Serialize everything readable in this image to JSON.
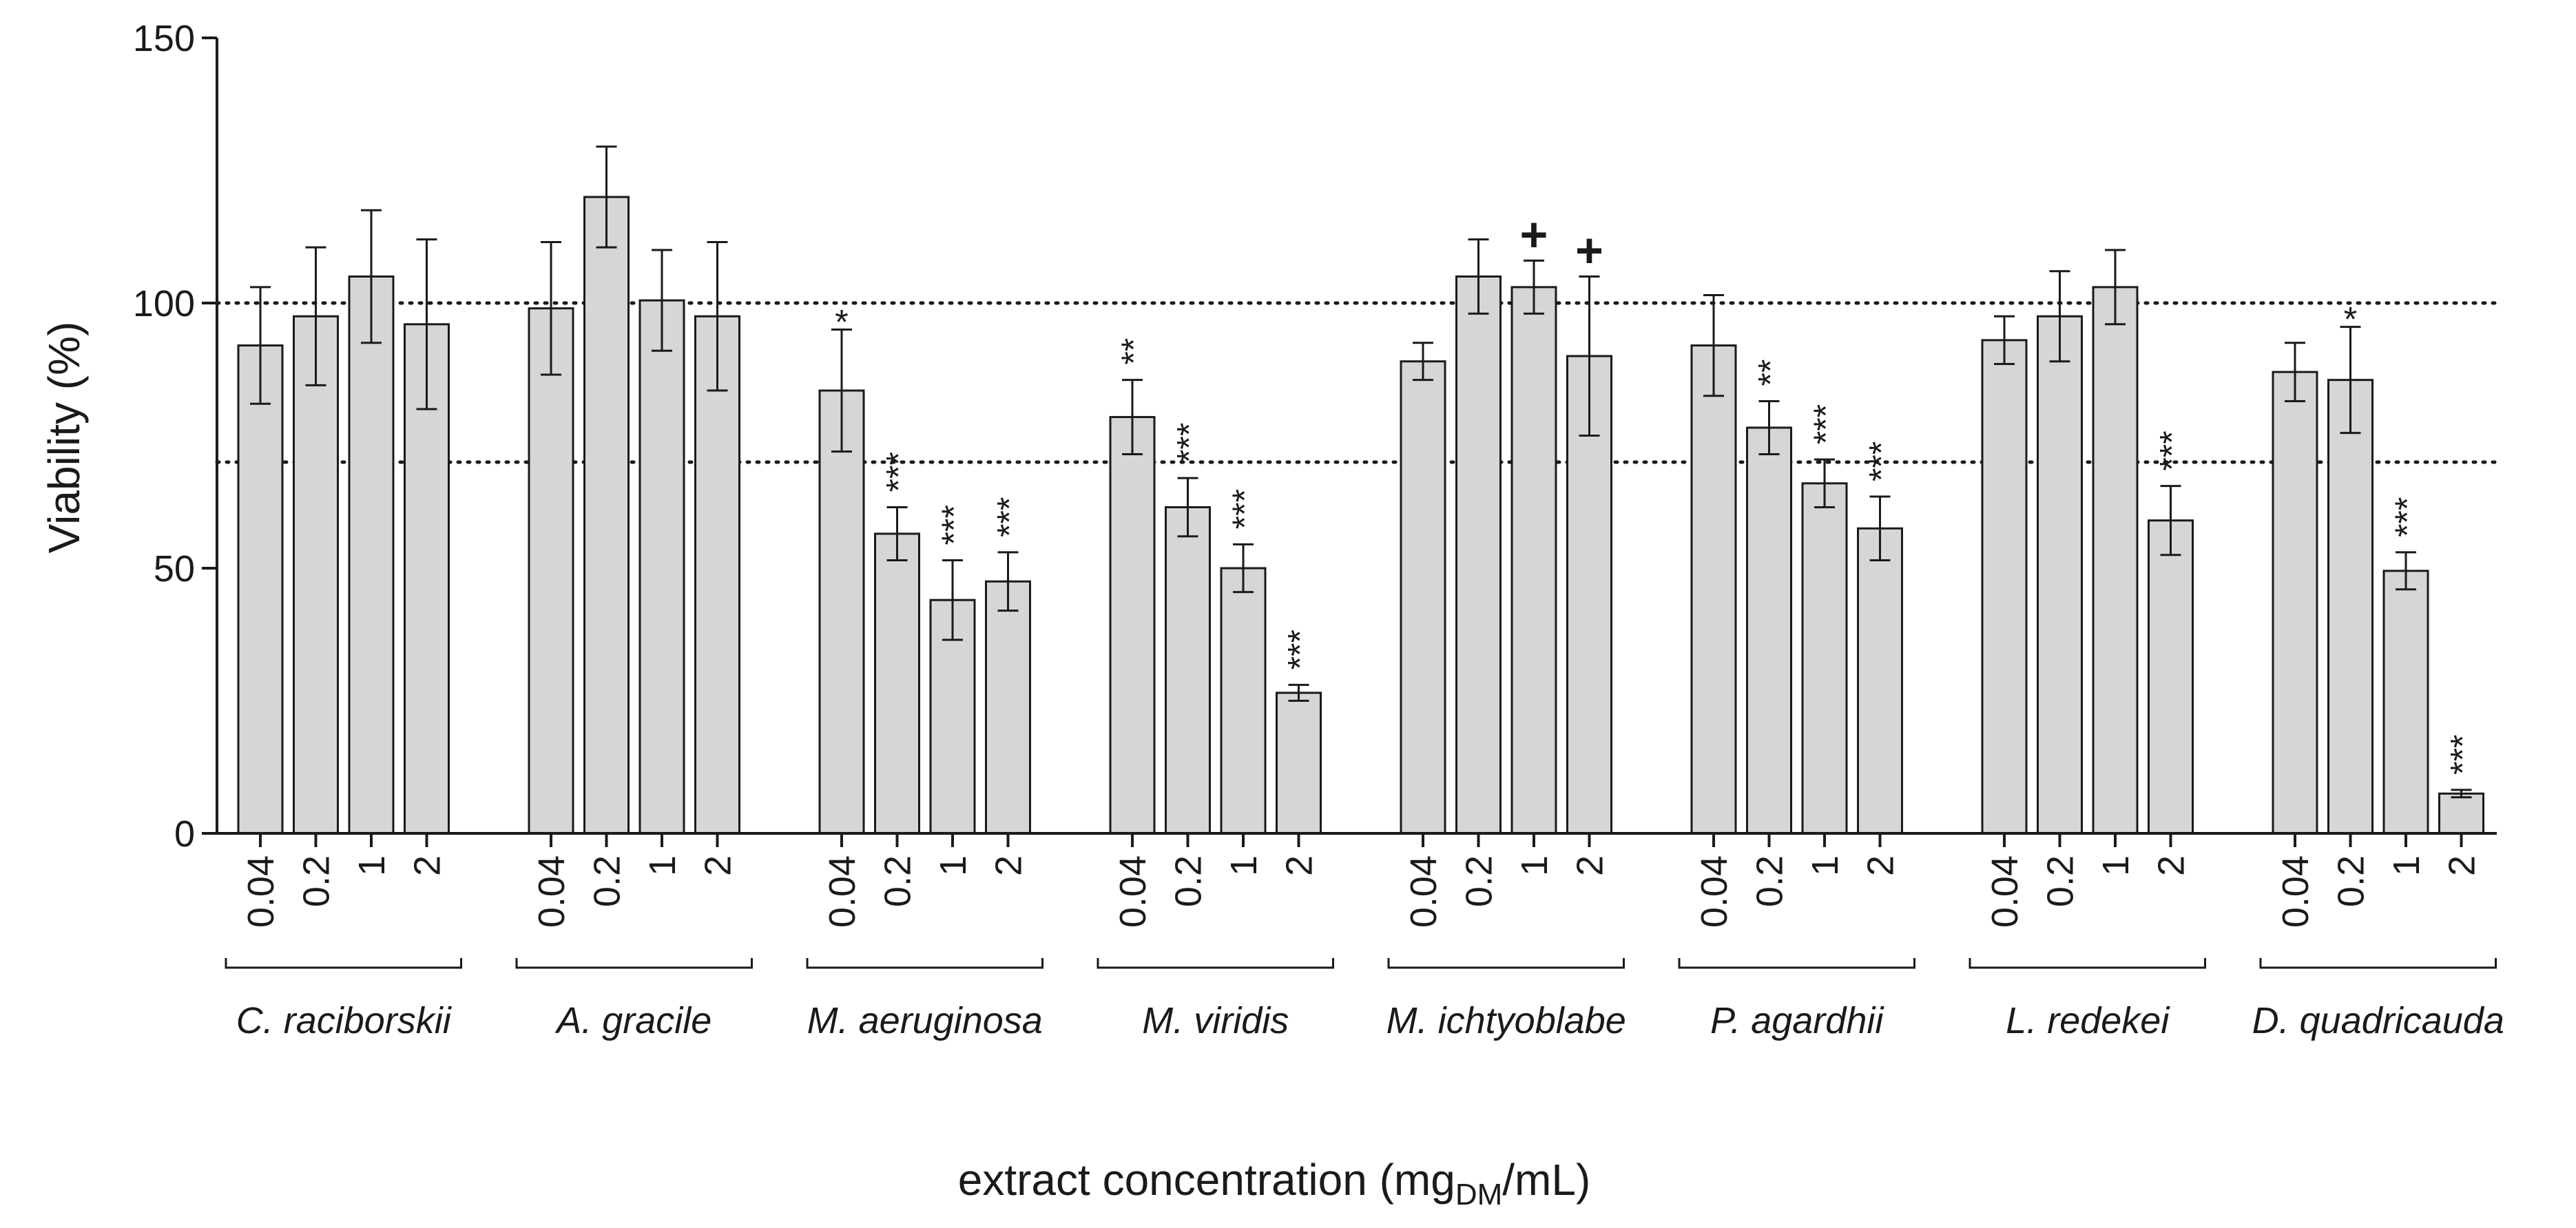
{
  "chart_data": {
    "type": "bar",
    "ylabel": "Viability (%)",
    "xlabel_main": "extract concentration (mg",
    "xlabel_sub": "DM",
    "xlabel_tail": "/mL)",
    "ylim": [
      0,
      150
    ],
    "yticks": [
      "0",
      "50",
      "100",
      "150"
    ],
    "reference_lines": [
      100,
      70
    ],
    "colors": {
      "bar_fill": "#d6d6d6",
      "bar_stroke": "#1a1a1a",
      "axis": "#1a1a1a"
    },
    "concentrations": [
      "0.04",
      "0.2",
      "1",
      "2"
    ],
    "groups": [
      {
        "name": "C. raciborskii",
        "values": [
          92,
          97.5,
          105,
          96
        ],
        "errors": [
          11,
          13,
          12.5,
          16
        ],
        "marks": [
          "",
          "",
          "",
          ""
        ]
      },
      {
        "name": "A. gracile",
        "values": [
          99,
          120,
          100.5,
          97.5
        ],
        "errors": [
          12.5,
          9.5,
          9.5,
          14
        ],
        "marks": [
          "",
          "",
          "",
          ""
        ]
      },
      {
        "name": "M. aeruginosa",
        "values": [
          83.5,
          56.5,
          44,
          47.5
        ],
        "errors": [
          11.5,
          5,
          7.5,
          5.5
        ],
        "marks": [
          "*",
          "***",
          "***",
          "***"
        ]
      },
      {
        "name": "M. viridis",
        "values": [
          78.5,
          61.5,
          50,
          26.5
        ],
        "errors": [
          7,
          5.5,
          4.5,
          1.5
        ],
        "marks": [
          "**",
          "***",
          "***",
          "***"
        ]
      },
      {
        "name": "M. ichtyoblabe",
        "values": [
          89,
          105,
          103,
          90
        ],
        "errors": [
          3.5,
          7,
          5,
          15
        ],
        "marks": [
          "",
          "",
          "+",
          "+"
        ]
      },
      {
        "name": "P. agardhii",
        "values": [
          92,
          76.5,
          66,
          57.5
        ],
        "errors": [
          9.5,
          5,
          4.5,
          6
        ],
        "marks": [
          "",
          "**",
          "***",
          "***"
        ]
      },
      {
        "name": "L. redekei",
        "values": [
          93,
          97.5,
          103,
          59
        ],
        "errors": [
          4.5,
          8.5,
          7,
          6.5
        ],
        "marks": [
          "",
          "",
          "",
          "***"
        ]
      },
      {
        "name": "D. quadricauda",
        "values": [
          87,
          85.5,
          49.5,
          7.5
        ],
        "errors": [
          5.5,
          10,
          3.5,
          0.7
        ],
        "marks": [
          "",
          "*",
          "***",
          "***"
        ]
      }
    ]
  }
}
